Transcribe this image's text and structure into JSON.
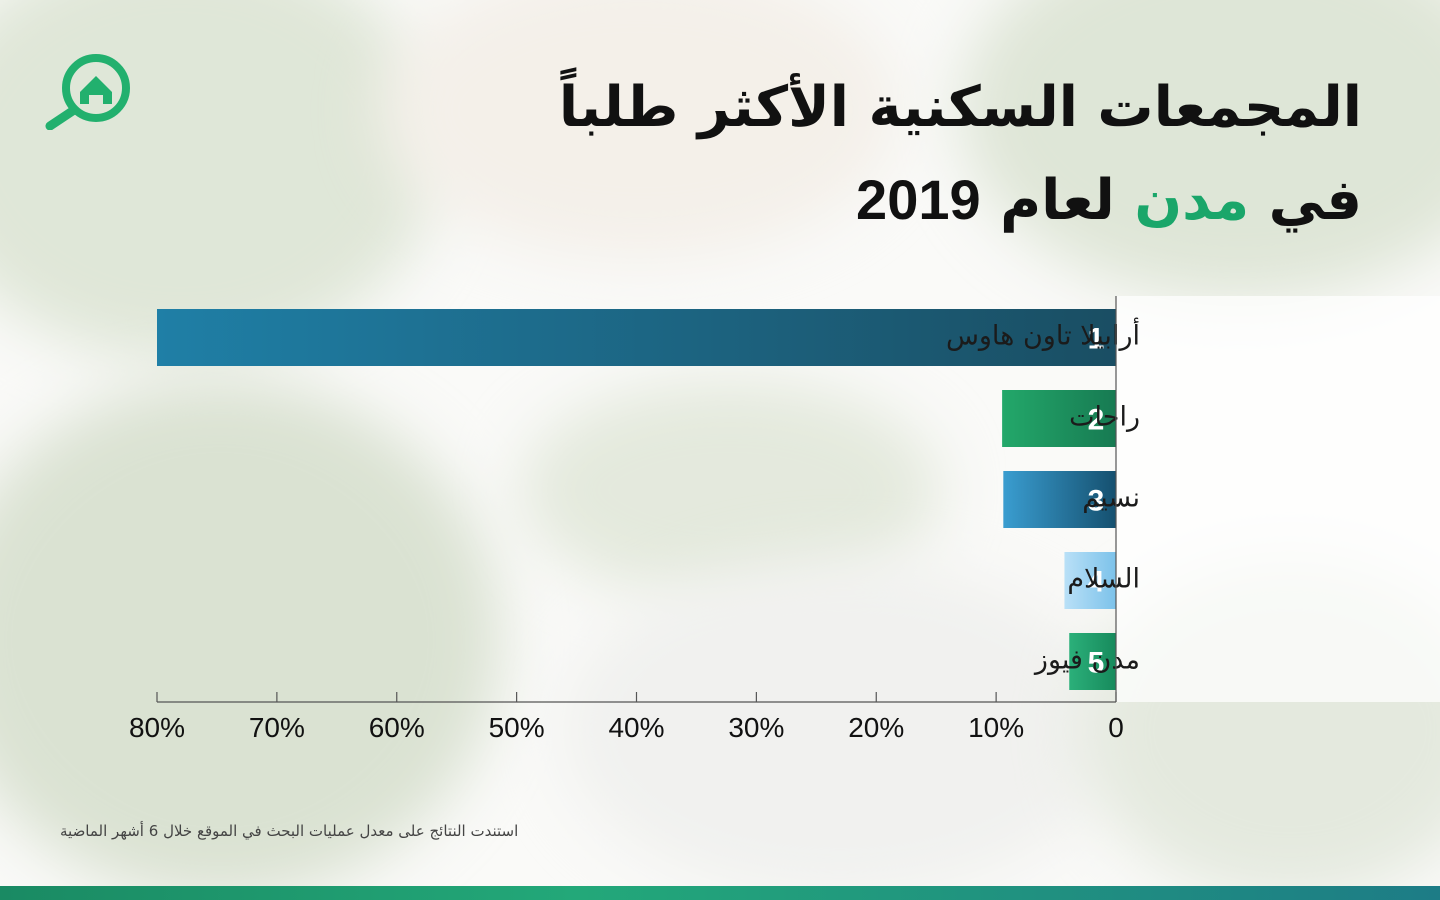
{
  "title": {
    "line1": "المجمعات السكنية الأكثر طلباً",
    "line2_prefix": "في",
    "line2_accent": "مدن",
    "line2_suffix": "لعام",
    "year": "2019"
  },
  "footnote": "استندت النتائج على معدل عمليات البحث في الموقع خلال 6 أشهر الماضية",
  "colors": {
    "accent": "#1aa66a",
    "bar1_start": "#1f7fa6",
    "bar1_end": "#1a4e63",
    "bar2_start": "#23a86a",
    "bar2_end": "#177a52",
    "bar3_start": "#3a9dd0",
    "bar3_end": "#15506f",
    "bar4_start": "#b9e0f7",
    "bar4_end": "#7cc2ea",
    "bar5_start": "#2bb07a",
    "bar5_end": "#178a5c"
  },
  "icons": {
    "logo": "house-search-icon"
  },
  "chart_data": {
    "type": "bar",
    "orientation": "horizontal",
    "direction": "right-to-left",
    "categories": [
      "أرابيلا تاون هاوس",
      "راحات",
      "نسيم",
      "السلام",
      "مدن فيوز"
    ],
    "ranks": [
      "1",
      "2",
      "3",
      "4",
      "5"
    ],
    "values": [
      80,
      9.5,
      9.4,
      4.3,
      3.9
    ],
    "xlim": [
      0,
      80
    ],
    "xticks": [
      0,
      10,
      20,
      30,
      40,
      50,
      60,
      70,
      80
    ],
    "xtick_labels": [
      "0",
      "10%",
      "20%",
      "30%",
      "40%",
      "50%",
      "60%",
      "70%",
      "80%"
    ],
    "grid": false
  }
}
